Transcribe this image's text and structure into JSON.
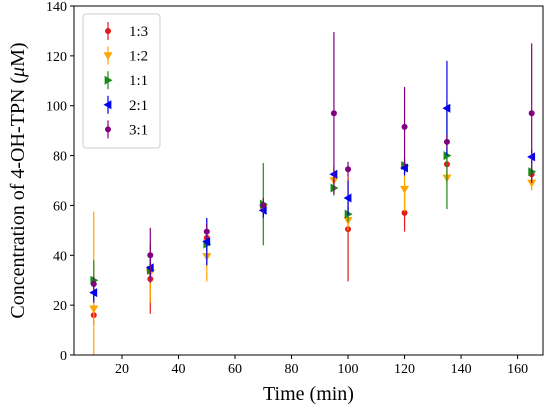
{
  "chart_data": {
    "type": "scatter",
    "xlabel": "Time (min)",
    "ylabel": "Concentration of 4-OH-TPN (",
    "ylabel_mu": "μ",
    "ylabel_unit": "M)",
    "xlim": [
      3,
      169
    ],
    "ylim": [
      0,
      140
    ],
    "xticks": [
      20,
      40,
      60,
      80,
      100,
      120,
      140,
      160
    ],
    "yticks": [
      0,
      20,
      40,
      60,
      80,
      100,
      120,
      140
    ],
    "error_bars": true,
    "legend_position": "top-left",
    "series": [
      {
        "name": "1:3",
        "color": "#e31a1c",
        "marker": "circle",
        "points": [
          {
            "x": 10,
            "y": 16,
            "err": 4
          },
          {
            "x": 30,
            "y": 30.5,
            "err": 14
          },
          {
            "x": 50,
            "y": 47,
            "err": 3
          },
          {
            "x": 70,
            "y": 59,
            "err": 3
          },
          {
            "x": 100,
            "y": 50.5,
            "err": 21
          },
          {
            "x": 120,
            "y": 57,
            "err": 7.5
          },
          {
            "x": 135,
            "y": 76.5,
            "err": 5
          },
          {
            "x": 165,
            "y": 72.5,
            "err": 3
          }
        ]
      },
      {
        "name": "1:2",
        "color": "#ffa500",
        "marker": "triangle-down",
        "points": [
          {
            "x": 10,
            "y": 18.5,
            "err": 39
          },
          {
            "x": 30,
            "y": 33,
            "err": 12
          },
          {
            "x": 50,
            "y": 39.5,
            "err": 10
          },
          {
            "x": 70,
            "y": 59,
            "err": 4
          },
          {
            "x": 95,
            "y": 70,
            "err": 3
          },
          {
            "x": 100,
            "y": 54,
            "err": 4
          },
          {
            "x": 120,
            "y": 66.5,
            "err": 9
          },
          {
            "x": 135,
            "y": 71,
            "err": 3
          },
          {
            "x": 165,
            "y": 69,
            "err": 3
          }
        ]
      },
      {
        "name": "1:1",
        "color": "#1a8a1a",
        "marker": "triangle-right",
        "points": [
          {
            "x": 10,
            "y": 30,
            "err": 8
          },
          {
            "x": 30,
            "y": 34,
            "err": 4
          },
          {
            "x": 50,
            "y": 44.5,
            "err": 3
          },
          {
            "x": 70,
            "y": 60.5,
            "err": 16.5
          },
          {
            "x": 95,
            "y": 67,
            "err": 3
          },
          {
            "x": 100,
            "y": 56.5,
            "err": 3
          },
          {
            "x": 120,
            "y": 76,
            "err": 3
          },
          {
            "x": 135,
            "y": 80,
            "err": 21.5
          },
          {
            "x": 165,
            "y": 73.5,
            "err": 3
          }
        ]
      },
      {
        "name": "2:1",
        "color": "#0000ee",
        "marker": "triangle-left",
        "points": [
          {
            "x": 10,
            "y": 25,
            "err": 4
          },
          {
            "x": 30,
            "y": 35,
            "err": 4
          },
          {
            "x": 50,
            "y": 45.5,
            "err": 9.5
          },
          {
            "x": 70,
            "y": 58,
            "err": 3
          },
          {
            "x": 95,
            "y": 72.5,
            "err": 3
          },
          {
            "x": 100,
            "y": 63,
            "err": 7
          },
          {
            "x": 120,
            "y": 75,
            "err": 3
          },
          {
            "x": 135,
            "y": 99,
            "err": 19
          },
          {
            "x": 165,
            "y": 79.5,
            "err": 3
          }
        ]
      },
      {
        "name": "3:1",
        "color": "#800080",
        "marker": "circle",
        "points": [
          {
            "x": 10,
            "y": 28.5,
            "err": 3
          },
          {
            "x": 30,
            "y": 40,
            "err": 11
          },
          {
            "x": 50,
            "y": 49.5,
            "err": 3
          },
          {
            "x": 70,
            "y": 60,
            "err": 3
          },
          {
            "x": 95,
            "y": 97,
            "err": 32.5
          },
          {
            "x": 100,
            "y": 74.5,
            "err": 3
          },
          {
            "x": 120,
            "y": 91.5,
            "err": 16
          },
          {
            "x": 135,
            "y": 85.5,
            "err": 3
          },
          {
            "x": 165,
            "y": 97,
            "err": 28
          }
        ]
      }
    ]
  }
}
